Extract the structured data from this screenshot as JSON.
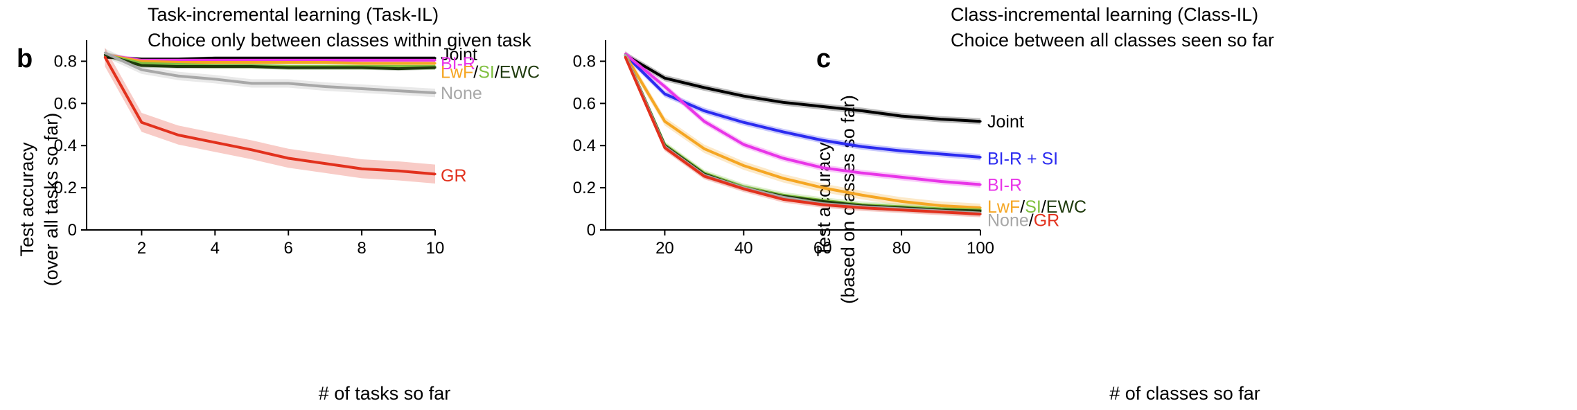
{
  "panels": [
    {
      "letter": "b",
      "title_line1": "Task-incremental learning (Task-IL)",
      "title_line2": "Choice only between classes within given task",
      "ylabel_line1": "Test accuracy",
      "ylabel_line2": "(over all tasks so far)"
    },
    {
      "letter": "c",
      "title_line1": "Class-incremental learning (Class-IL)",
      "title_line2": "Choice between all classes seen so far",
      "ylabel_line1": "Test accuracy",
      "ylabel_line2": "(based on classes so far)"
    }
  ],
  "chart_data": [
    {
      "type": "line",
      "title": "Task-incremental learning (Task-IL)",
      "subtitle": "Choice only between classes within given task",
      "xlabel": "# of tasks so far",
      "ylabel": "Test accuracy (over all tasks so far)",
      "x": [
        1,
        2,
        3,
        4,
        5,
        6,
        7,
        8,
        9,
        10
      ],
      "xlim": [
        0.5,
        10
      ],
      "ylim": [
        0,
        0.9
      ],
      "xticks": [
        2,
        4,
        6,
        8,
        10
      ],
      "yticks": [
        0,
        0.2,
        0.4,
        0.6,
        0.8
      ],
      "ytick_labels": [
        "0",
        "0.2",
        "0.4",
        "0.6",
        "0.8"
      ],
      "grid": false,
      "legend": "direct labels at right",
      "series": [
        {
          "name": "Joint",
          "color": "#000000",
          "band": 0.008,
          "values": [
            0.82,
            0.81,
            0.81,
            0.815,
            0.815,
            0.815,
            0.815,
            0.815,
            0.815,
            0.815
          ]
        },
        {
          "name": "BI-R",
          "color": "#e835e8",
          "band": 0.01,
          "values": [
            0.83,
            0.805,
            0.805,
            0.805,
            0.805,
            0.805,
            0.805,
            0.805,
            0.805,
            0.805
          ]
        },
        {
          "name": "LwF",
          "color": "#f5a623",
          "band": 0.01,
          "values": [
            0.83,
            0.8,
            0.795,
            0.795,
            0.795,
            0.795,
            0.795,
            0.79,
            0.79,
            0.79
          ]
        },
        {
          "name": "SI",
          "color": "#7fbf3f",
          "band": 0.015,
          "values": [
            0.83,
            0.79,
            0.785,
            0.78,
            0.78,
            0.775,
            0.775,
            0.775,
            0.775,
            0.775
          ]
        },
        {
          "name": "EWC",
          "color": "#1e3a0c",
          "band": 0.01,
          "values": [
            0.83,
            0.78,
            0.775,
            0.775,
            0.775,
            0.77,
            0.77,
            0.77,
            0.765,
            0.77
          ]
        },
        {
          "name": "None",
          "color": "#a8a8a8",
          "band": 0.02,
          "values": [
            0.84,
            0.76,
            0.73,
            0.715,
            0.695,
            0.695,
            0.68,
            0.67,
            0.66,
            0.65
          ]
        },
        {
          "name": "GR",
          "color": "#e2311d",
          "band": 0.045,
          "values": [
            0.82,
            0.51,
            0.45,
            0.415,
            0.38,
            0.34,
            0.315,
            0.29,
            0.28,
            0.265
          ]
        }
      ],
      "labels": [
        {
          "parts": [
            {
              "text": "Joint",
              "color": "#000000"
            }
          ],
          "y": 0.835
        },
        {
          "parts": [
            {
              "text": "BI-R",
              "color": "#e835e8"
            }
          ],
          "y": 0.792
        },
        {
          "parts": [
            {
              "text": "LwF",
              "color": "#f5a623"
            },
            {
              "text": "/",
              "color": "#000000"
            },
            {
              "text": "SI",
              "color": "#7fbf3f"
            },
            {
              "text": "/",
              "color": "#000000"
            },
            {
              "text": "EWC",
              "color": "#1e3a0c"
            }
          ],
          "y": 0.75
        },
        {
          "parts": [
            {
              "text": "None",
              "color": "#a8a8a8"
            }
          ],
          "y": 0.65
        },
        {
          "parts": [
            {
              "text": "GR",
              "color": "#e2311d"
            }
          ],
          "y": 0.26
        }
      ]
    },
    {
      "type": "line",
      "title": "Class-incremental learning (Class-IL)",
      "subtitle": "Choice between all classes seen so far",
      "xlabel": "# of classes so far",
      "ylabel": "Test accuracy (based on classes so far)",
      "x": [
        10,
        20,
        30,
        40,
        50,
        60,
        70,
        80,
        90,
        100
      ],
      "xlim": [
        5,
        100
      ],
      "ylim": [
        0,
        0.9
      ],
      "xticks": [
        20,
        40,
        60,
        80,
        100
      ],
      "yticks": [
        0,
        0.2,
        0.4,
        0.6,
        0.8
      ],
      "ytick_labels": [
        "0",
        "0.2",
        "0.4",
        "0.6",
        "0.8"
      ],
      "grid": false,
      "legend": "direct labels at right",
      "series": [
        {
          "name": "Joint",
          "color": "#000000",
          "band": 0.015,
          "values": [
            0.83,
            0.72,
            0.675,
            0.635,
            0.605,
            0.585,
            0.565,
            0.54,
            0.525,
            0.515
          ]
        },
        {
          "name": "BI-R + SI",
          "color": "#2b2bf0",
          "band": 0.015,
          "values": [
            0.83,
            0.645,
            0.565,
            0.51,
            0.465,
            0.425,
            0.395,
            0.375,
            0.36,
            0.345
          ]
        },
        {
          "name": "BI-R",
          "color": "#e835e8",
          "band": 0.015,
          "values": [
            0.835,
            0.68,
            0.515,
            0.405,
            0.34,
            0.295,
            0.27,
            0.25,
            0.23,
            0.215
          ]
        },
        {
          "name": "LwF",
          "color": "#f5a623",
          "band": 0.02,
          "values": [
            0.83,
            0.515,
            0.385,
            0.305,
            0.245,
            0.2,
            0.165,
            0.135,
            0.115,
            0.105
          ]
        },
        {
          "name": "SI",
          "color": "#7fbf3f",
          "band": 0.015,
          "values": [
            0.83,
            0.405,
            0.27,
            0.205,
            0.165,
            0.14,
            0.12,
            0.11,
            0.1,
            0.095
          ]
        },
        {
          "name": "EWC",
          "color": "#1e3a0c",
          "band": 0.01,
          "values": [
            0.83,
            0.4,
            0.265,
            0.2,
            0.16,
            0.135,
            0.115,
            0.105,
            0.095,
            0.09
          ]
        },
        {
          "name": "None",
          "color": "#a8a8a8",
          "band": 0.015,
          "values": [
            0.83,
            0.395,
            0.26,
            0.2,
            0.155,
            0.125,
            0.11,
            0.1,
            0.09,
            0.08
          ]
        },
        {
          "name": "GR",
          "color": "#e2311d",
          "band": 0.015,
          "values": [
            0.82,
            0.39,
            0.255,
            0.195,
            0.145,
            0.12,
            0.105,
            0.095,
            0.085,
            0.075
          ]
        }
      ],
      "labels": [
        {
          "parts": [
            {
              "text": "Joint",
              "color": "#000000"
            }
          ],
          "y": 0.515
        },
        {
          "parts": [
            {
              "text": "BI-R + SI",
              "color": "#2b2bf0"
            }
          ],
          "y": 0.34
        },
        {
          "parts": [
            {
              "text": "BI-R",
              "color": "#e835e8"
            }
          ],
          "y": 0.215
        },
        {
          "parts": [
            {
              "text": "LwF",
              "color": "#f5a623"
            },
            {
              "text": "/",
              "color": "#000000"
            },
            {
              "text": "SI",
              "color": "#7fbf3f"
            },
            {
              "text": "/",
              "color": "#000000"
            },
            {
              "text": "EWC",
              "color": "#1e3a0c"
            }
          ],
          "y": 0.112
        },
        {
          "parts": [
            {
              "text": "None",
              "color": "#a8a8a8"
            },
            {
              "text": "/",
              "color": "#000000"
            },
            {
              "text": "GR",
              "color": "#e2311d"
            }
          ],
          "y": 0.048
        }
      ]
    }
  ]
}
